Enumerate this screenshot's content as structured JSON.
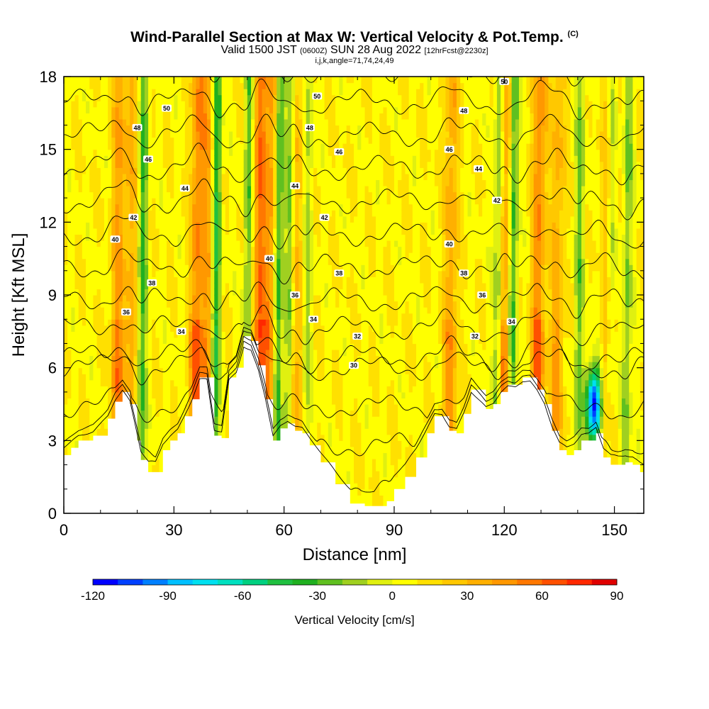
{
  "title": {
    "main": "Wind-Parallel Section at Max W: Vertical Velocity & Pot.Temp.",
    "copyright": "(C)",
    "valid_prefix": "Valid 1500 JST",
    "valid_utc": "(0600Z)",
    "valid_date": "SUN 28 Aug 2022",
    "forecast": "[12hrFcst@2230z]",
    "indices": "i,j,k,angle=71,74,24,49"
  },
  "chart_data": {
    "type": "heatmap",
    "xlabel": "Distance [nm]",
    "ylabel": "Height [Kft MSL]",
    "xlim": [
      0,
      158
    ],
    "ylim": [
      0,
      18
    ],
    "x_ticks": [
      "0",
      "30",
      "60",
      "90",
      "120",
      "150"
    ],
    "y_ticks": [
      "0",
      "3",
      "6",
      "9",
      "12",
      "15",
      "18"
    ],
    "colorbar": {
      "label": "Vertical Velocity [cm/s]",
      "min": -120,
      "max": 90,
      "step": 10,
      "tick_labels": [
        "-120",
        "-90",
        "-60",
        "-30",
        "0",
        "30",
        "60",
        "90"
      ],
      "colors": [
        "#0000ff",
        "#0040ff",
        "#0080ff",
        "#00c0ff",
        "#00e0f0",
        "#00e0c0",
        "#00d080",
        "#20c040",
        "#20b020",
        "#60c020",
        "#a0d020",
        "#e0f010",
        "#ffff00",
        "#ffe000",
        "#ffc800",
        "#ffb000",
        "#ff9800",
        "#ff7800",
        "#ff5000",
        "#ff2800",
        "#e00000",
        "#c00030",
        "#a00060",
        "#800080",
        "#600090"
      ]
    },
    "background_w_cms": 8,
    "updrafts": [
      {
        "x": 14.5,
        "w": 45
      },
      {
        "x": 18,
        "w": 30
      },
      {
        "x": 36,
        "w": 55
      },
      {
        "x": 39,
        "w": 40
      },
      {
        "x": 53,
        "w": 60
      },
      {
        "x": 56,
        "w": 45
      },
      {
        "x": 63,
        "w": 25
      },
      {
        "x": 105,
        "w": 40
      },
      {
        "x": 120,
        "w": 50
      },
      {
        "x": 129,
        "w": 55
      },
      {
        "x": 134,
        "w": 35
      },
      {
        "x": 148,
        "w": 40
      }
    ],
    "downdrafts": [
      {
        "x": 21,
        "w": -40
      },
      {
        "x": 41,
        "w": -55
      },
      {
        "x": 50,
        "w": -35
      },
      {
        "x": 58,
        "w": -50
      },
      {
        "x": 61,
        "w": -30
      },
      {
        "x": 66,
        "w": -20
      },
      {
        "x": 118,
        "w": -35
      },
      {
        "x": 122,
        "w": -50
      },
      {
        "x": 140,
        "w": -30
      },
      {
        "x": 148.5,
        "w": -40
      },
      {
        "x": 153,
        "w": -30
      }
    ],
    "min_w_cell": {
      "x": 144.5,
      "z": 4.5,
      "w": -120
    },
    "theta_levels": [
      24,
      26,
      28,
      30,
      32,
      34,
      36,
      38,
      40,
      42,
      44,
      46,
      48,
      50
    ],
    "theta_labels": [
      {
        "text": "30",
        "x": 79,
        "z": 6.1
      },
      {
        "text": "32",
        "x": 80,
        "z": 7.3
      },
      {
        "text": "32",
        "x": 112,
        "z": 7.3
      },
      {
        "text": "34",
        "x": 32,
        "z": 7.5
      },
      {
        "text": "34",
        "x": 68,
        "z": 8.0
      },
      {
        "text": "34",
        "x": 122,
        "z": 7.9
      },
      {
        "text": "36",
        "x": 17,
        "z": 8.3
      },
      {
        "text": "36",
        "x": 63,
        "z": 9.0
      },
      {
        "text": "36",
        "x": 114,
        "z": 9.0
      },
      {
        "text": "38",
        "x": 24,
        "z": 9.5
      },
      {
        "text": "38",
        "x": 75,
        "z": 9.9
      },
      {
        "text": "38",
        "x": 109,
        "z": 9.9
      },
      {
        "text": "40",
        "x": 14,
        "z": 11.3
      },
      {
        "text": "40",
        "x": 56,
        "z": 10.5
      },
      {
        "text": "40",
        "x": 105,
        "z": 11.1
      },
      {
        "text": "42",
        "x": 19,
        "z": 12.2
      },
      {
        "text": "42",
        "x": 71,
        "z": 12.2
      },
      {
        "text": "42",
        "x": 118,
        "z": 12.9
      },
      {
        "text": "44",
        "x": 33,
        "z": 13.4
      },
      {
        "text": "44",
        "x": 63,
        "z": 13.5
      },
      {
        "text": "44",
        "x": 113,
        "z": 14.2
      },
      {
        "text": "46",
        "x": 23,
        "z": 14.6
      },
      {
        "text": "46",
        "x": 75,
        "z": 14.9
      },
      {
        "text": "46",
        "x": 105,
        "z": 15.0
      },
      {
        "text": "48",
        "x": 20,
        "z": 15.9
      },
      {
        "text": "48",
        "x": 67,
        "z": 15.9
      },
      {
        "text": "48",
        "x": 109,
        "z": 16.6
      },
      {
        "text": "50",
        "x": 28,
        "z": 16.7
      },
      {
        "text": "50",
        "x": 69,
        "z": 17.2
      },
      {
        "text": "50",
        "x": 120,
        "z": 17.8
      }
    ],
    "terrain_kft": [
      [
        0,
        2.4
      ],
      [
        2,
        2.7
      ],
      [
        4,
        3.0
      ],
      [
        8,
        3.2
      ],
      [
        12,
        3.9
      ],
      [
        14,
        4.6
      ],
      [
        16,
        5.0
      ],
      [
        18,
        4.5
      ],
      [
        20,
        3.0
      ],
      [
        21,
        2.2
      ],
      [
        23,
        1.7
      ],
      [
        25,
        1.7
      ],
      [
        27,
        2.6
      ],
      [
        29,
        3.0
      ],
      [
        31,
        3.3
      ],
      [
        33,
        4.0
      ],
      [
        35,
        4.7
      ],
      [
        37,
        5.6
      ],
      [
        39,
        5.6
      ],
      [
        41,
        3.2
      ],
      [
        43,
        3.1
      ],
      [
        45,
        5.6
      ],
      [
        47,
        6.0
      ],
      [
        49,
        7.3
      ],
      [
        51,
        7.1
      ],
      [
        53,
        6.1
      ],
      [
        55,
        4.7
      ],
      [
        57,
        3.0
      ],
      [
        59,
        3.5
      ],
      [
        61,
        3.7
      ],
      [
        63,
        3.4
      ],
      [
        65,
        3.3
      ],
      [
        67,
        2.8
      ],
      [
        70,
        2.1
      ],
      [
        74,
        1.2
      ],
      [
        78,
        0.4
      ],
      [
        82,
        0.3
      ],
      [
        86,
        0.3
      ],
      [
        88,
        0.5
      ],
      [
        90,
        1.0
      ],
      [
        93,
        1.5
      ],
      [
        96,
        2.3
      ],
      [
        99,
        3.3
      ],
      [
        101,
        4.0
      ],
      [
        103,
        4.0
      ],
      [
        105,
        3.4
      ],
      [
        107,
        3.3
      ],
      [
        109,
        4.1
      ],
      [
        111,
        5.1
      ],
      [
        115,
        4.3
      ],
      [
        117,
        4.5
      ],
      [
        119,
        5.0
      ],
      [
        121,
        5.3
      ],
      [
        123,
        5.3
      ],
      [
        125,
        5.6
      ],
      [
        127,
        5.6
      ],
      [
        129,
        5.1
      ],
      [
        131,
        4.5
      ],
      [
        133,
        3.4
      ],
      [
        135,
        2.6
      ],
      [
        137,
        2.4
      ],
      [
        139,
        2.6
      ],
      [
        141,
        3.0
      ],
      [
        143,
        3.0
      ],
      [
        145,
        3.3
      ],
      [
        147,
        2.3
      ],
      [
        149,
        2.0
      ],
      [
        151,
        2.0
      ],
      [
        153,
        2.1
      ],
      [
        155,
        2.0
      ],
      [
        157,
        1.7
      ],
      [
        158,
        1.6
      ]
    ]
  }
}
